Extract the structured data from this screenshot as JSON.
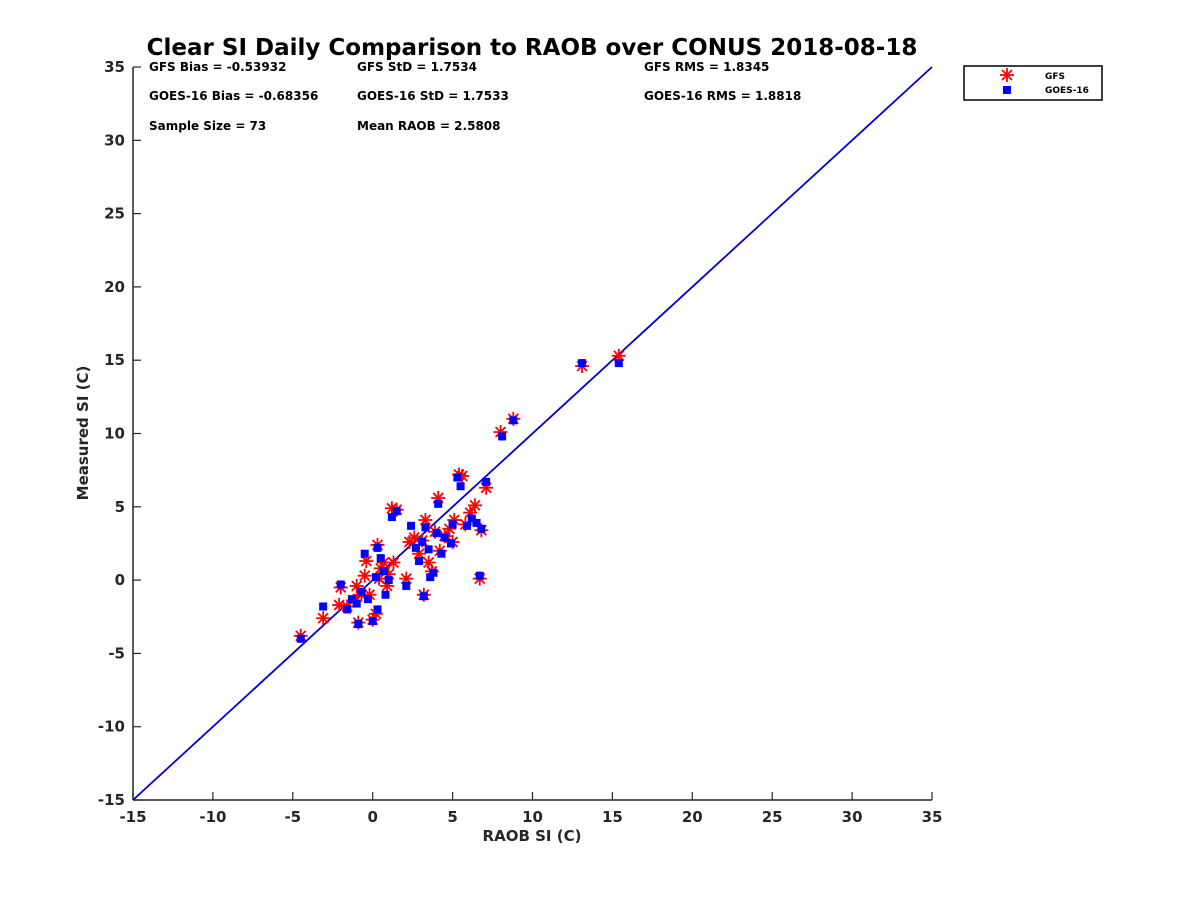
{
  "chart_data": {
    "type": "scatter",
    "title": "Clear SI Daily Comparison to RAOB over CONUS 2018-08-18",
    "xlabel": "RAOB SI (C)",
    "ylabel": "Measured SI (C)",
    "xlim": [
      -15,
      35
    ],
    "ylim": [
      -15,
      35
    ],
    "xticks": [
      "-15",
      "-10",
      "-5",
      "0",
      "5",
      "10",
      "15",
      "20",
      "25",
      "30",
      "35"
    ],
    "yticks": [
      "-15",
      "-10",
      "-5",
      "0",
      "5",
      "10",
      "15",
      "20",
      "25",
      "30",
      "35"
    ],
    "grid": false,
    "legend_position": "outside-top-right",
    "reference_line": {
      "x": [
        -15,
        35
      ],
      "y": [
        -15,
        35
      ],
      "color": "#0000cd"
    },
    "stats": {
      "gfs_bias": "GFS Bias = -0.53932",
      "gfs_std": "GFS StD = 1.7534",
      "gfs_rms": "GFS RMS = 1.8345",
      "goes_bias": "GOES-16 Bias = -0.68356",
      "goes_std": "GOES-16 StD = 1.7533",
      "goes_rms": "GOES-16 RMS = 1.8818",
      "sample_size": "Sample Size = 73",
      "mean_raob": "Mean RAOB = 2.5808"
    },
    "series": [
      {
        "name": "GFS",
        "marker": "asterisk",
        "color": "#ff0000",
        "points": [
          [
            -4.5,
            -3.8
          ],
          [
            -3.1,
            -2.6
          ],
          [
            -2.1,
            -1.7
          ],
          [
            -2.0,
            -0.5
          ],
          [
            -1.6,
            -1.8
          ],
          [
            -1.2,
            -1.4
          ],
          [
            -1.0,
            -0.4
          ],
          [
            -0.9,
            -2.9
          ],
          [
            -0.7,
            -1.0
          ],
          [
            -0.5,
            0.3
          ],
          [
            -0.4,
            1.3
          ],
          [
            -0.2,
            -1.0
          ],
          [
            0.0,
            -2.7
          ],
          [
            0.2,
            -2.3
          ],
          [
            0.3,
            2.4
          ],
          [
            0.4,
            0.1
          ],
          [
            0.5,
            0.8
          ],
          [
            0.7,
            1.2
          ],
          [
            0.9,
            -0.4
          ],
          [
            1.0,
            0.4
          ],
          [
            1.2,
            4.9
          ],
          [
            1.3,
            1.2
          ],
          [
            1.5,
            4.8
          ],
          [
            2.1,
            0.1
          ],
          [
            2.3,
            2.6
          ],
          [
            2.6,
            2.9
          ],
          [
            2.9,
            1.8
          ],
          [
            3.1,
            2.7
          ],
          [
            3.2,
            -1.0
          ],
          [
            3.3,
            4.1
          ],
          [
            3.5,
            1.2
          ],
          [
            3.7,
            0.6
          ],
          [
            3.9,
            3.3
          ],
          [
            4.1,
            5.6
          ],
          [
            4.2,
            2.0
          ],
          [
            4.5,
            3.0
          ],
          [
            4.8,
            3.5
          ],
          [
            5.0,
            2.6
          ],
          [
            5.1,
            4.1
          ],
          [
            5.4,
            7.2
          ],
          [
            5.6,
            7.1
          ],
          [
            5.8,
            3.8
          ],
          [
            6.1,
            4.6
          ],
          [
            6.4,
            5.1
          ],
          [
            6.8,
            3.4
          ],
          [
            6.7,
            0.1
          ],
          [
            7.1,
            6.3
          ],
          [
            8.0,
            10.1
          ],
          [
            8.8,
            11.0
          ],
          [
            13.1,
            14.6
          ],
          [
            15.4,
            15.3
          ]
        ]
      },
      {
        "name": "GOES-16",
        "marker": "square",
        "color": "#0000ff",
        "points": [
          [
            -4.5,
            -4.0
          ],
          [
            -3.1,
            -1.8
          ],
          [
            -2.0,
            -0.3
          ],
          [
            -1.6,
            -2.0
          ],
          [
            -1.3,
            -1.3
          ],
          [
            -1.0,
            -1.6
          ],
          [
            -0.9,
            -3.0
          ],
          [
            -0.7,
            -0.8
          ],
          [
            -0.5,
            1.8
          ],
          [
            -0.3,
            -1.3
          ],
          [
            0.0,
            -2.8
          ],
          [
            0.2,
            0.2
          ],
          [
            0.3,
            -2.0
          ],
          [
            0.3,
            2.2
          ],
          [
            0.5,
            1.5
          ],
          [
            0.7,
            0.6
          ],
          [
            0.8,
            -1.0
          ],
          [
            1.0,
            0.0
          ],
          [
            1.2,
            4.3
          ],
          [
            1.5,
            4.7
          ],
          [
            2.1,
            -0.4
          ],
          [
            2.4,
            3.7
          ],
          [
            2.7,
            2.2
          ],
          [
            2.9,
            1.3
          ],
          [
            3.1,
            2.6
          ],
          [
            3.2,
            -1.1
          ],
          [
            3.3,
            3.6
          ],
          [
            3.5,
            2.1
          ],
          [
            3.6,
            0.2
          ],
          [
            3.8,
            0.5
          ],
          [
            4.0,
            3.2
          ],
          [
            4.1,
            5.2
          ],
          [
            4.3,
            1.8
          ],
          [
            4.5,
            2.9
          ],
          [
            4.9,
            2.5
          ],
          [
            5.0,
            3.8
          ],
          [
            5.3,
            7.0
          ],
          [
            5.5,
            6.4
          ],
          [
            5.9,
            3.7
          ],
          [
            6.2,
            4.2
          ],
          [
            6.5,
            3.9
          ],
          [
            6.8,
            3.5
          ],
          [
            6.7,
            0.3
          ],
          [
            7.1,
            6.7
          ],
          [
            8.1,
            9.8
          ],
          [
            8.8,
            10.9
          ],
          [
            13.1,
            14.8
          ],
          [
            15.4,
            14.8
          ]
        ]
      }
    ]
  }
}
